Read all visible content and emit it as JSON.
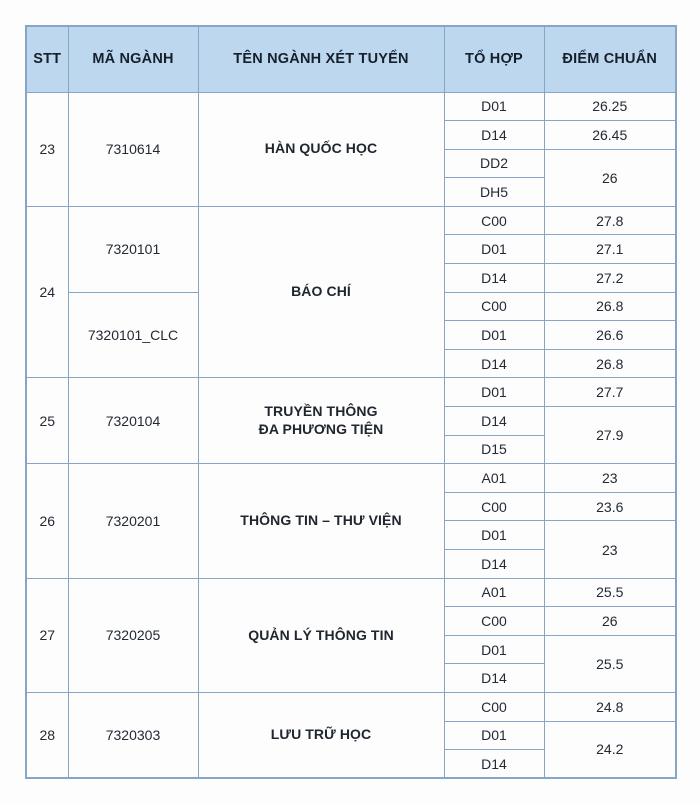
{
  "colors": {
    "header_bg": "#bdd7ee",
    "border": "#87a5c4",
    "text": "#232a33",
    "highlight_red": "#c0272d"
  },
  "table": {
    "headers": {
      "stt": "STT",
      "code": "MÃ NGÀNH",
      "name": "TÊN NGÀNH XÉT TUYỂN",
      "combo": "TỔ HỢP",
      "score": "ĐIỂM CHUẨN"
    },
    "blocks": [
      {
        "stt": "23",
        "name": "HÀN QUỐC HỌC",
        "codes": [
          {
            "value": "7310614"
          }
        ],
        "rows": [
          {
            "combo": "D01",
            "score": "26.25"
          },
          {
            "combo": "D14",
            "score": "26.45"
          },
          {
            "combo": "DD2",
            "score": "26"
          },
          {
            "combo": "DH5"
          }
        ]
      },
      {
        "stt": "24",
        "name": "BÁO CHÍ",
        "codes": [
          {
            "value": "7320101"
          },
          {
            "value": "7320101_CLC",
            "red": true
          }
        ],
        "rows": [
          {
            "combo": "C00",
            "score": "27.8"
          },
          {
            "combo": "D01",
            "score": "27.1"
          },
          {
            "combo": "D14",
            "score": "27.2"
          },
          {
            "combo": "C00",
            "score": "26.8",
            "red": true
          },
          {
            "combo": "D01",
            "score": "26.6",
            "red": true
          },
          {
            "combo": "D14",
            "score": "26.8",
            "red": true
          }
        ]
      },
      {
        "stt": "25",
        "name": "TRUYỀN THÔNG\nĐA PHƯƠNG TIỆN",
        "codes": [
          {
            "value": "7320104"
          }
        ],
        "rows": [
          {
            "combo": "D01",
            "score": "27.7"
          },
          {
            "combo": "D14",
            "score": "27.9"
          },
          {
            "combo": "D15"
          }
        ]
      },
      {
        "stt": "26",
        "name": "THÔNG TIN – THƯ VIỆN",
        "codes": [
          {
            "value": "7320201"
          }
        ],
        "rows": [
          {
            "combo": "A01",
            "score": "23"
          },
          {
            "combo": "C00",
            "score": "23.6"
          },
          {
            "combo": "D01",
            "score": "23"
          },
          {
            "combo": "D14"
          }
        ]
      },
      {
        "stt": "27",
        "name": "QUẢN LÝ THÔNG TIN",
        "codes": [
          {
            "value": "7320205"
          }
        ],
        "rows": [
          {
            "combo": "A01",
            "score": "25.5"
          },
          {
            "combo": "C00",
            "score": "26"
          },
          {
            "combo": "D01",
            "score": "25.5"
          },
          {
            "combo": "D14"
          }
        ]
      },
      {
        "stt": "28",
        "name": "LƯU TRỮ HỌC",
        "codes": [
          {
            "value": "7320303"
          }
        ],
        "rows": [
          {
            "combo": "C00",
            "score": "24.8"
          },
          {
            "combo": "D01",
            "score": "24.2"
          },
          {
            "combo": "D14"
          }
        ]
      }
    ]
  }
}
